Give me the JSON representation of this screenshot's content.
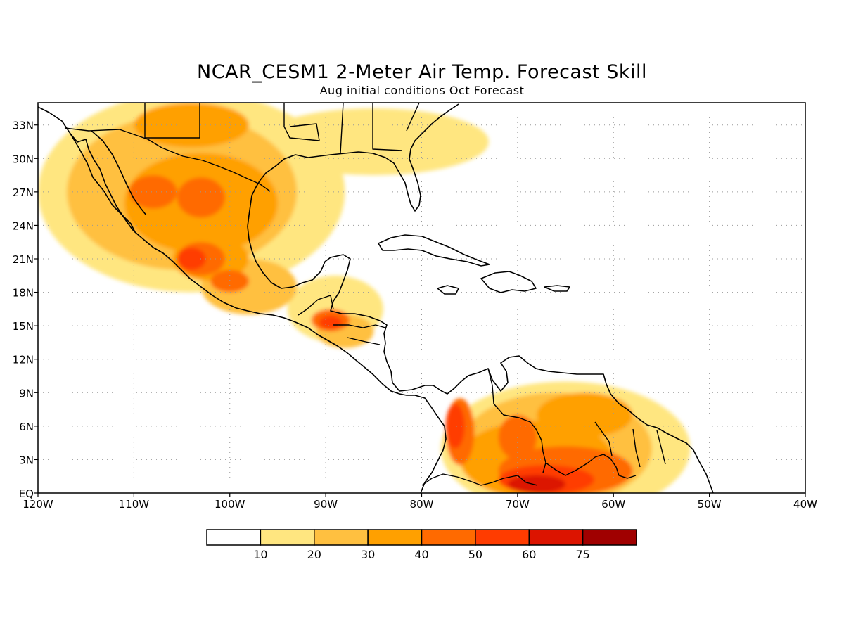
{
  "figure": {
    "title": "NCAR_CESM1 2-Meter Air Temp. Forecast Skill",
    "subtitle": "Aug initial conditions  Oct Forecast"
  },
  "map": {
    "lon_range": [
      -120,
      -40
    ],
    "lat_range": [
      0,
      35
    ],
    "lon_ticks": [
      {
        "lon": -120,
        "label": "120W"
      },
      {
        "lon": -110,
        "label": "110W"
      },
      {
        "lon": -100,
        "label": "100W"
      },
      {
        "lon": -90,
        "label": "90W"
      },
      {
        "lon": -80,
        "label": "80W"
      },
      {
        "lon": -70,
        "label": "70W"
      },
      {
        "lon": -60,
        "label": "60W"
      },
      {
        "lon": -50,
        "label": "50W"
      },
      {
        "lon": -40,
        "label": "40W"
      }
    ],
    "lat_ticks": [
      {
        "lat": 0,
        "label": "EQ"
      },
      {
        "lat": 3,
        "label": "3N"
      },
      {
        "lat": 6,
        "label": "6N"
      },
      {
        "lat": 9,
        "label": "9N"
      },
      {
        "lat": 12,
        "label": "12N"
      },
      {
        "lat": 15,
        "label": "15N"
      },
      {
        "lat": 18,
        "label": "18N"
      },
      {
        "lat": 21,
        "label": "21N"
      },
      {
        "lat": 24,
        "label": "24N"
      },
      {
        "lat": 27,
        "label": "27N"
      },
      {
        "lat": 30,
        "label": "30N"
      },
      {
        "lat": 33,
        "label": "33N"
      }
    ],
    "grid": "dotted"
  },
  "colorbar": {
    "labels": [
      "10",
      "20",
      "30",
      "40",
      "50",
      "60",
      "75"
    ],
    "colors": [
      "#ffffff",
      "#ffe680",
      "#ffc040",
      "#ffa000",
      "#ff6a00",
      "#ff3c00",
      "#dc1400",
      "#a00000"
    ]
  },
  "skill_regions": [
    {
      "level": 1,
      "lon": -104,
      "lat": 27,
      "rx": 16,
      "ry": 9
    },
    {
      "level": 1,
      "lon": -85,
      "lat": 31.5,
      "rx": 12,
      "ry": 3
    },
    {
      "level": 1,
      "lon": -89,
      "lat": 16.5,
      "rx": 5,
      "ry": 3
    },
    {
      "level": 1,
      "lon": -65,
      "lat": 4,
      "rx": 13,
      "ry": 6
    },
    {
      "level": 2,
      "lon": -105,
      "lat": 27,
      "rx": 12,
      "ry": 7
    },
    {
      "level": 2,
      "lon": -98,
      "lat": 18.5,
      "rx": 5,
      "ry": 2.5
    },
    {
      "level": 2,
      "lon": -88,
      "lat": 14.5,
      "rx": 3,
      "ry": 1.5
    },
    {
      "level": 2,
      "lon": -66,
      "lat": 4,
      "rx": 10,
      "ry": 5
    },
    {
      "level": 3,
      "lon": -103,
      "lat": 26,
      "rx": 8,
      "ry": 4.5
    },
    {
      "level": 3,
      "lon": -104,
      "lat": 33,
      "rx": 6,
      "ry": 2
    },
    {
      "level": 3,
      "lon": -102,
      "lat": 21,
      "rx": 4,
      "ry": 2
    },
    {
      "level": 3,
      "lon": -68,
      "lat": 3,
      "rx": 8,
      "ry": 3.5
    },
    {
      "level": 3,
      "lon": -63,
      "lat": 7,
      "rx": 5,
      "ry": 2
    },
    {
      "level": 4,
      "lon": -108,
      "lat": 27,
      "rx": 2.5,
      "ry": 1.5
    },
    {
      "level": 4,
      "lon": -103,
      "lat": 26.5,
      "rx": 2.5,
      "ry": 1.8
    },
    {
      "level": 4,
      "lon": -103,
      "lat": 21,
      "rx": 2.5,
      "ry": 1.5
    },
    {
      "level": 4,
      "lon": -100,
      "lat": 19,
      "rx": 2,
      "ry": 1
    },
    {
      "level": 4,
      "lon": -89.5,
      "lat": 15.5,
      "rx": 2,
      "ry": 1
    },
    {
      "level": 4,
      "lon": -76,
      "lat": 5.5,
      "rx": 1.5,
      "ry": 3
    },
    {
      "level": 4,
      "lon": -70,
      "lat": 5,
      "rx": 2,
      "ry": 2
    },
    {
      "level": 4,
      "lon": -65,
      "lat": 2,
      "rx": 7,
      "ry": 2.2
    },
    {
      "level": 5,
      "lon": -104,
      "lat": 21,
      "rx": 1.5,
      "ry": 1
    },
    {
      "level": 5,
      "lon": -76.5,
      "lat": 6,
      "rx": 1,
      "ry": 2
    },
    {
      "level": 5,
      "lon": -67,
      "lat": 1.2,
      "rx": 5,
      "ry": 1.3
    },
    {
      "level": 5,
      "lon": -89.5,
      "lat": 15.3,
      "rx": 1.2,
      "ry": 0.6
    },
    {
      "level": 6,
      "lon": -68,
      "lat": 0.8,
      "rx": 3,
      "ry": 0.8
    }
  ]
}
